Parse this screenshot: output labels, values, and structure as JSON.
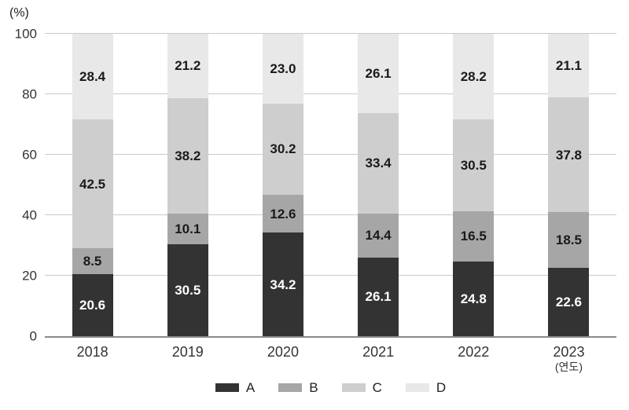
{
  "chart_data": {
    "type": "bar",
    "stacked": true,
    "unit_label": "(%)",
    "x_axis_note": "(연도)",
    "x_axis_note_category": "2023",
    "categories": [
      "2018",
      "2019",
      "2020",
      "2021",
      "2022",
      "2023"
    ],
    "series": [
      {
        "name": "A",
        "color": "#333333",
        "label_color": "#ffffff",
        "values": [
          20.6,
          30.5,
          34.2,
          26.1,
          24.8,
          22.6
        ],
        "labels": [
          "20.6",
          "30.5",
          "34.2",
          "26.1",
          "24.8",
          "22.6"
        ]
      },
      {
        "name": "B",
        "color": "#a6a6a6",
        "label_color": "#1a1a1a",
        "values": [
          8.5,
          10.1,
          12.6,
          14.4,
          16.5,
          18.5
        ],
        "labels": [
          "8.5",
          "10.1",
          "12.6",
          "14.4",
          "16.5",
          "18.5"
        ]
      },
      {
        "name": "C",
        "color": "#cecece",
        "label_color": "#1a1a1a",
        "values": [
          42.5,
          38.2,
          30.2,
          33.4,
          30.5,
          37.8
        ],
        "labels": [
          "42.5",
          "38.2",
          "30.2",
          "33.4",
          "30.5",
          "37.8"
        ]
      },
      {
        "name": "D",
        "color": "#e8e8e8",
        "label_color": "#1a1a1a",
        "values": [
          28.4,
          21.2,
          23.0,
          26.1,
          28.2,
          21.1
        ],
        "labels": [
          "28.4",
          "21.2",
          "23.0",
          "26.1",
          "28.2",
          "21.1"
        ]
      }
    ],
    "y_ticks": [
      0,
      20,
      40,
      60,
      80,
      100
    ],
    "ylim": [
      0,
      100
    ],
    "grid": true,
    "legend_position": "bottom",
    "legend": [
      "A",
      "B",
      "C",
      "D"
    ]
  },
  "style": {
    "background": "#ffffff",
    "grid_color": "#c9c9c9",
    "baseline_color": "#8a8a8a",
    "tick_label_color": "#333333"
  }
}
